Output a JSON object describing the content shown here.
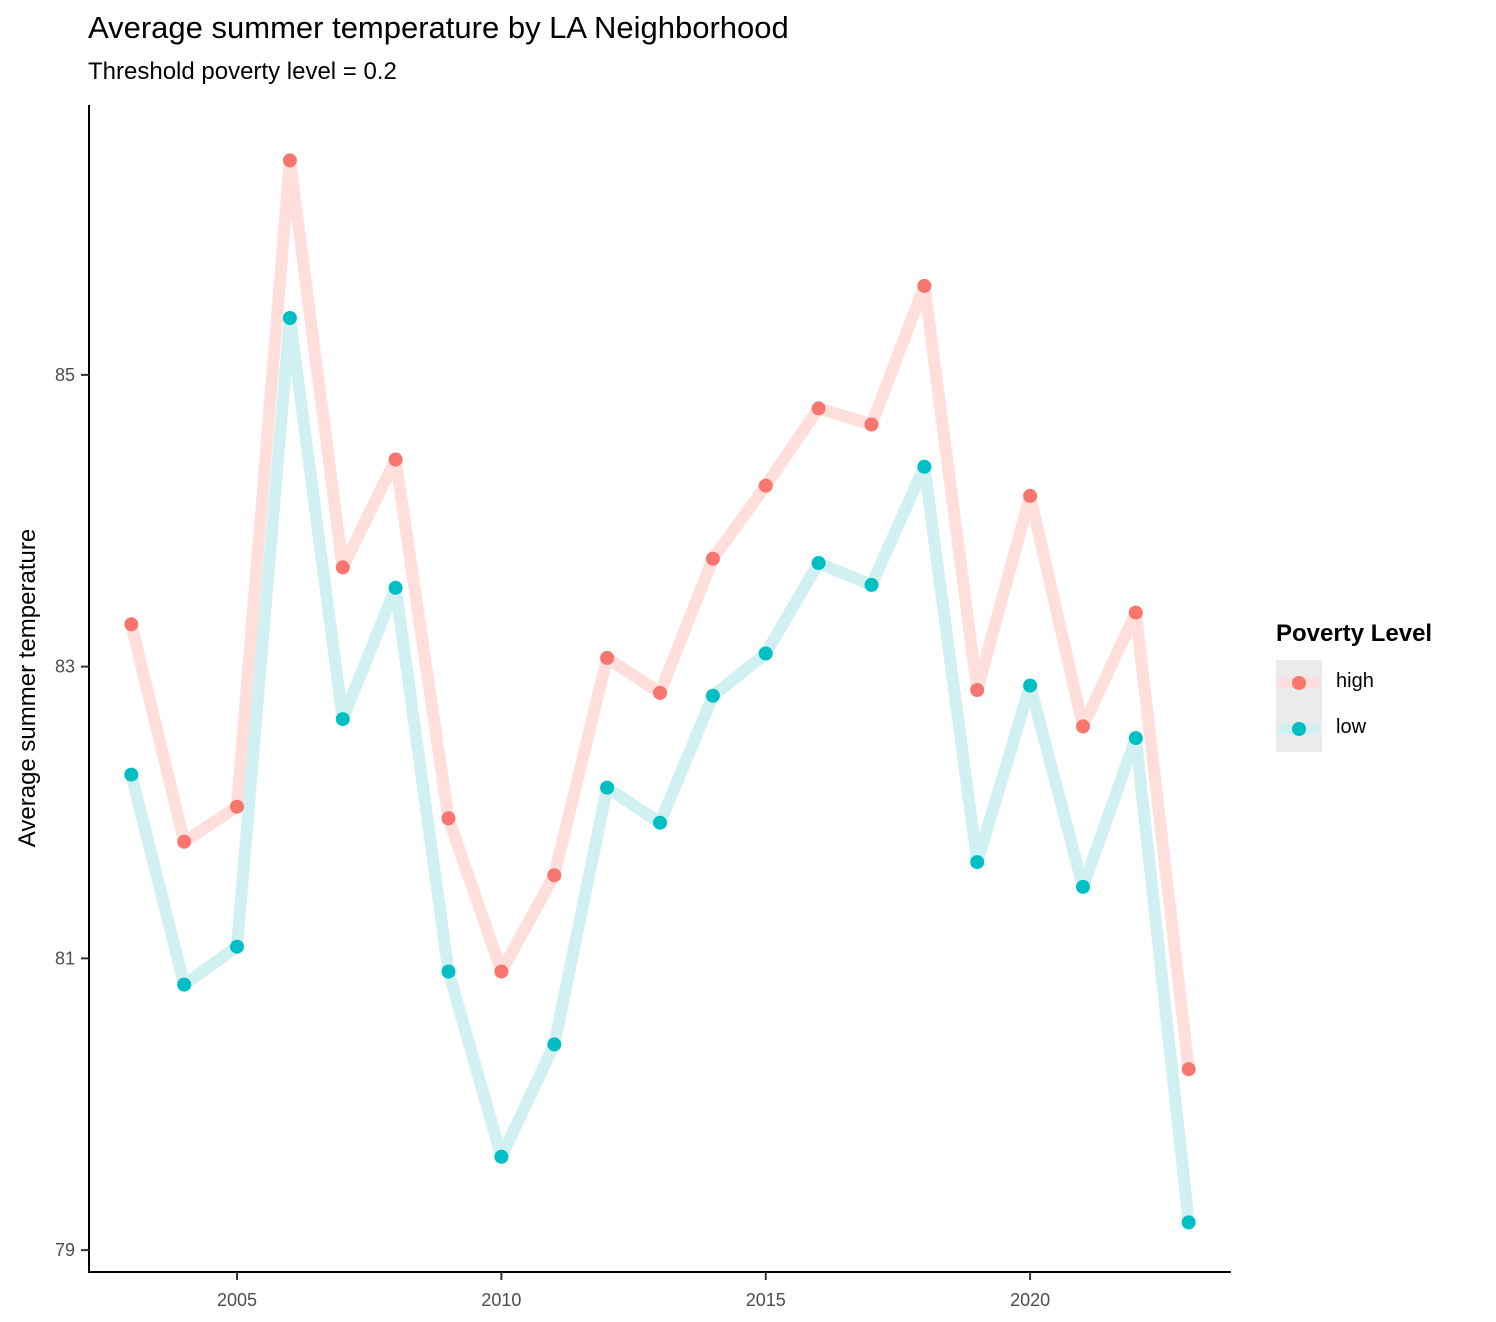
{
  "chart_data": {
    "type": "line",
    "title": "Average summer temperature by LA Neighborhood",
    "subtitle": "Threshold poverty level = 0.2",
    "xlabel": "",
    "ylabel": "Average summer temperature",
    "xlim": [
      2002.2,
      2023.8
    ],
    "ylim": [
      78.85,
      86.85
    ],
    "x_ticks": [
      2005,
      2010,
      2015,
      2020
    ],
    "y_ticks": [
      79,
      81,
      83,
      85
    ],
    "grid": false,
    "legend_position": "right",
    "legend_title": "Poverty Level",
    "x": [
      2003,
      2004,
      2005,
      2006,
      2007,
      2008,
      2009,
      2010,
      2011,
      2012,
      2013,
      2014,
      2015,
      2016,
      2017,
      2018,
      2019,
      2020,
      2021,
      2022,
      2023
    ],
    "series": [
      {
        "name": "high",
        "point_color": "#F8766D",
        "line_color": "#FFDEDB",
        "values": [
          83.29,
          81.8,
          82.04,
          86.47,
          83.68,
          84.42,
          81.96,
          80.91,
          81.57,
          83.06,
          82.82,
          83.74,
          84.24,
          84.77,
          84.66,
          85.61,
          82.84,
          84.17,
          82.59,
          83.37,
          80.24
        ]
      },
      {
        "name": "low",
        "point_color": "#00BFC4",
        "line_color": "#D0F0F1",
        "values": [
          82.26,
          80.82,
          81.08,
          85.39,
          82.64,
          83.54,
          80.91,
          79.64,
          80.41,
          82.17,
          81.93,
          82.8,
          83.09,
          83.71,
          83.56,
          84.37,
          81.66,
          82.87,
          81.49,
          82.51,
          79.19
        ]
      }
    ]
  }
}
